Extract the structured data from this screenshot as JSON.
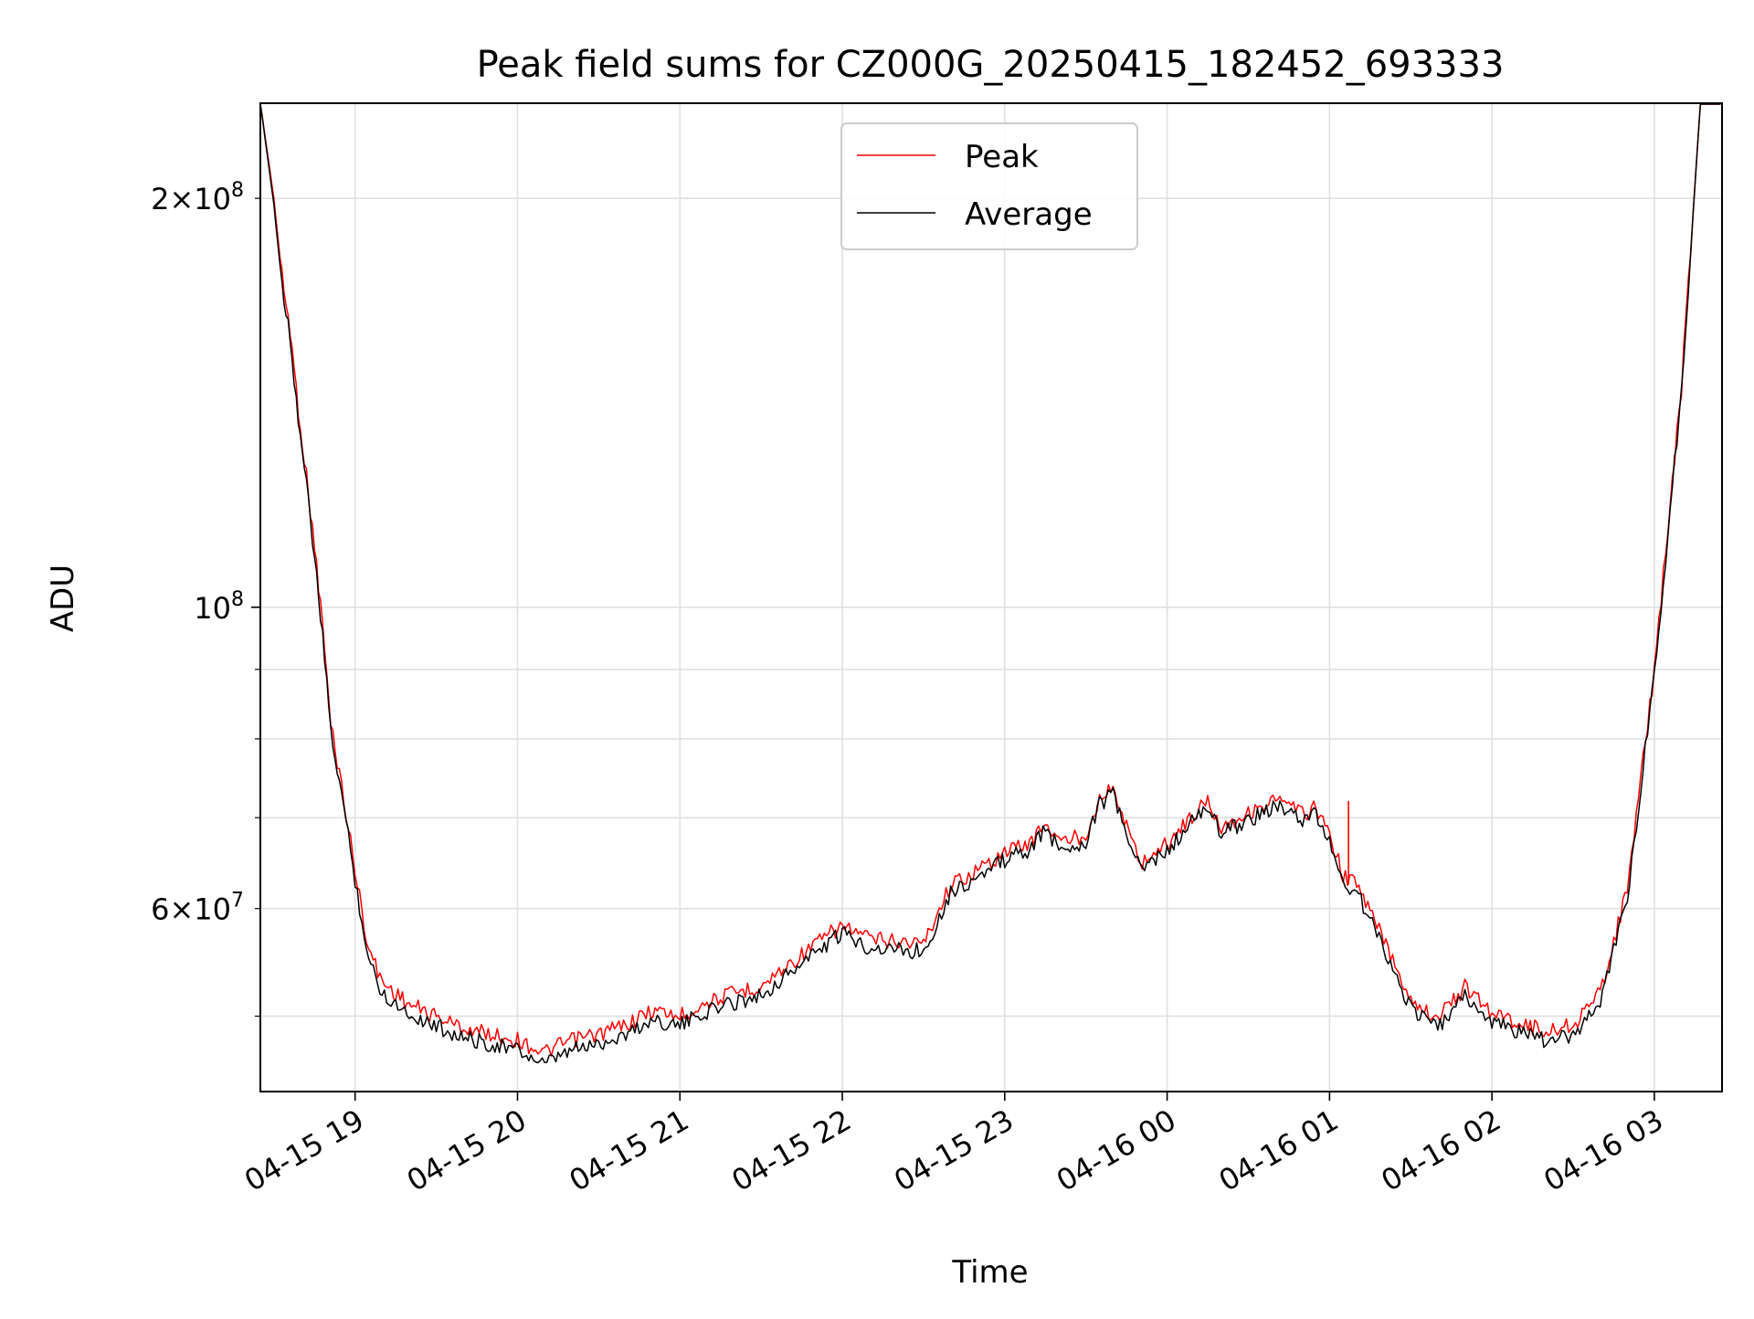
{
  "chart_data": {
    "type": "line",
    "title": "Peak field sums for CZ000G_20250415_182452_693333",
    "xlabel": "Time",
    "ylabel": "ADU",
    "yscale": "log",
    "ylim": [
      44000000,
      235000000
    ],
    "xlim": [
      "2025-04-15 18:25",
      "2025-04-16 03:25"
    ],
    "grid": true,
    "legend_position": "top-center",
    "colors": {
      "peak": "#ff0000",
      "average": "#000000",
      "grid": "#e0e0e0",
      "axis": "#000000"
    },
    "x_ticks": [
      {
        "at": "2025-04-15 19:00",
        "label": "04-15 19"
      },
      {
        "at": "2025-04-15 20:00",
        "label": "04-15 20"
      },
      {
        "at": "2025-04-15 21:00",
        "label": "04-15 21"
      },
      {
        "at": "2025-04-15 22:00",
        "label": "04-15 22"
      },
      {
        "at": "2025-04-15 23:00",
        "label": "04-15 23"
      },
      {
        "at": "2025-04-16 00:00",
        "label": "04-16 00"
      },
      {
        "at": "2025-04-16 01:00",
        "label": "04-16 01"
      },
      {
        "at": "2025-04-16 02:00",
        "label": "04-16 02"
      },
      {
        "at": "2025-04-16 03:00",
        "label": "04-16 03"
      }
    ],
    "y_major_ticks": [
      {
        "value": 100000000,
        "base": "10",
        "exp": "8"
      }
    ],
    "y_minor_ticks": [
      {
        "value": 50000000
      },
      {
        "value": 60000000,
        "mantissa": "6",
        "base": "10",
        "exp": "7"
      },
      {
        "value": 70000000
      },
      {
        "value": 80000000
      },
      {
        "value": 90000000
      },
      {
        "value": 200000000,
        "mantissa": "2",
        "base": "10",
        "exp": "8"
      }
    ],
    "series": [
      {
        "name": "Peak",
        "color": "#ff0000",
        "points": [
          [
            "2025-04-15 18:25",
            235000000
          ],
          [
            "2025-04-15 18:30",
            200000000
          ],
          [
            "2025-04-15 18:33",
            175000000
          ],
          [
            "2025-04-15 18:36",
            160000000
          ],
          [
            "2025-04-15 18:39",
            140000000
          ],
          [
            "2025-04-15 18:42",
            125000000
          ],
          [
            "2025-04-15 18:45",
            111000000
          ],
          [
            "2025-04-15 18:48",
            97000000
          ],
          [
            "2025-04-15 18:51",
            82000000
          ],
          [
            "2025-04-15 18:55",
            74000000
          ],
          [
            "2025-04-15 19:00",
            64000000
          ],
          [
            "2025-04-15 19:05",
            56000000
          ],
          [
            "2025-04-15 19:10",
            53000000
          ],
          [
            "2025-04-15 19:20",
            51000000
          ],
          [
            "2025-04-15 19:30",
            50000000
          ],
          [
            "2025-04-15 19:40",
            49000000
          ],
          [
            "2025-04-15 19:50",
            48500000
          ],
          [
            "2025-04-15 20:00",
            48000000
          ],
          [
            "2025-04-15 20:10",
            47000000
          ],
          [
            "2025-04-15 20:20",
            48000000
          ],
          [
            "2025-04-15 20:30",
            48500000
          ],
          [
            "2025-04-15 20:40",
            49300000
          ],
          [
            "2025-04-15 20:50",
            50500000
          ],
          [
            "2025-04-15 21:00",
            50000000
          ],
          [
            "2025-04-15 21:10",
            51200000
          ],
          [
            "2025-04-15 21:20",
            52000000
          ],
          [
            "2025-04-15 21:30",
            52600000
          ],
          [
            "2025-04-15 21:40",
            54500000
          ],
          [
            "2025-04-15 21:50",
            56500000
          ],
          [
            "2025-04-15 22:00",
            58300000
          ],
          [
            "2025-04-15 22:10",
            57000000
          ],
          [
            "2025-04-15 22:20",
            56800000
          ],
          [
            "2025-04-15 22:30",
            56600000
          ],
          [
            "2025-04-15 22:40",
            62500000
          ],
          [
            "2025-04-15 22:50",
            64000000
          ],
          [
            "2025-04-15 23:00",
            66000000
          ],
          [
            "2025-04-15 23:10",
            67200000
          ],
          [
            "2025-04-15 23:15",
            69500000
          ],
          [
            "2025-04-15 23:20",
            67200000
          ],
          [
            "2025-04-15 23:30",
            68000000
          ],
          [
            "2025-04-15 23:35",
            72500000
          ],
          [
            "2025-04-15 23:40",
            73500000
          ],
          [
            "2025-04-15 23:45",
            69000000
          ],
          [
            "2025-04-15 23:50",
            64800000
          ],
          [
            "2025-04-16 00:00",
            67000000
          ],
          [
            "2025-04-16 00:10",
            70500000
          ],
          [
            "2025-04-16 00:15",
            72000000
          ],
          [
            "2025-04-16 00:20",
            69000000
          ],
          [
            "2025-04-16 00:30",
            70500000
          ],
          [
            "2025-04-16 00:40",
            72200000
          ],
          [
            "2025-04-16 00:50",
            70500000
          ],
          [
            "2025-04-16 00:55",
            71200000
          ],
          [
            "2025-04-16 01:00",
            68000000
          ],
          [
            "2025-04-16 01:05",
            63500000
          ],
          [
            "2025-04-16 01:10",
            62500000
          ],
          [
            "2025-04-16 01:20",
            57000000
          ],
          [
            "2025-04-16 01:30",
            51500000
          ],
          [
            "2025-04-16 01:40",
            49800000
          ],
          [
            "2025-04-16 01:50",
            52500000
          ],
          [
            "2025-04-16 02:00",
            50300000
          ],
          [
            "2025-04-16 02:10",
            49500000
          ],
          [
            "2025-04-16 02:20",
            48700000
          ],
          [
            "2025-04-16 02:30",
            49300000
          ],
          [
            "2025-04-16 02:40",
            52000000
          ],
          [
            "2025-04-16 02:50",
            62000000
          ],
          [
            "2025-04-16 03:00",
            90000000
          ],
          [
            "2025-04-16 03:10",
            145000000
          ],
          [
            "2025-04-16 03:17",
            235000000
          ],
          [
            "2025-04-16 03:25",
            235000000
          ]
        ],
        "spikes": [
          [
            "2025-04-16 01:07",
            72000000
          ]
        ]
      },
      {
        "name": "Average",
        "color": "#000000",
        "points": [
          [
            "2025-04-15 18:25",
            235000000
          ],
          [
            "2025-04-15 18:30",
            198000000
          ],
          [
            "2025-04-15 18:33",
            173000000
          ],
          [
            "2025-04-15 18:36",
            158000000
          ],
          [
            "2025-04-15 18:39",
            138000000
          ],
          [
            "2025-04-15 18:42",
            123000000
          ],
          [
            "2025-04-15 18:45",
            109000000
          ],
          [
            "2025-04-15 18:48",
            95000000
          ],
          [
            "2025-04-15 18:51",
            81000000
          ],
          [
            "2025-04-15 18:55",
            73000000
          ],
          [
            "2025-04-15 19:00",
            63000000
          ],
          [
            "2025-04-15 19:05",
            55000000
          ],
          [
            "2025-04-15 19:10",
            52000000
          ],
          [
            "2025-04-15 19:20",
            50200000
          ],
          [
            "2025-04-15 19:30",
            49200000
          ],
          [
            "2025-04-15 19:40",
            48200000
          ],
          [
            "2025-04-15 19:50",
            47700000
          ],
          [
            "2025-04-15 20:00",
            47200000
          ],
          [
            "2025-04-15 20:10",
            46000000
          ],
          [
            "2025-04-15 20:20",
            47200000
          ],
          [
            "2025-04-15 20:30",
            47700000
          ],
          [
            "2025-04-15 20:40",
            48500000
          ],
          [
            "2025-04-15 20:50",
            49700000
          ],
          [
            "2025-04-15 21:00",
            49200000
          ],
          [
            "2025-04-15 21:10",
            50400000
          ],
          [
            "2025-04-15 21:20",
            51200000
          ],
          [
            "2025-04-15 21:30",
            51800000
          ],
          [
            "2025-04-15 21:40",
            53700000
          ],
          [
            "2025-04-15 21:50",
            55700000
          ],
          [
            "2025-04-15 22:00",
            57500000
          ],
          [
            "2025-04-15 22:10",
            56200000
          ],
          [
            "2025-04-15 22:20",
            56000000
          ],
          [
            "2025-04-15 22:30",
            55800000
          ],
          [
            "2025-04-15 22:40",
            61700000
          ],
          [
            "2025-04-15 22:50",
            63200000
          ],
          [
            "2025-04-15 23:00",
            65200000
          ],
          [
            "2025-04-15 23:10",
            66400000
          ],
          [
            "2025-04-15 23:15",
            68700000
          ],
          [
            "2025-04-15 23:20",
            66400000
          ],
          [
            "2025-04-15 23:30",
            67200000
          ],
          [
            "2025-04-15 23:35",
            71700000
          ],
          [
            "2025-04-15 23:40",
            72700000
          ],
          [
            "2025-04-15 23:45",
            68200000
          ],
          [
            "2025-04-15 23:50",
            64000000
          ],
          [
            "2025-04-16 00:00",
            66200000
          ],
          [
            "2025-04-16 00:10",
            69700000
          ],
          [
            "2025-04-16 00:15",
            71200000
          ],
          [
            "2025-04-16 00:20",
            68200000
          ],
          [
            "2025-04-16 00:30",
            69700000
          ],
          [
            "2025-04-16 00:40",
            71400000
          ],
          [
            "2025-04-16 00:50",
            69700000
          ],
          [
            "2025-04-16 00:55",
            70400000
          ],
          [
            "2025-04-16 01:00",
            67200000
          ],
          [
            "2025-04-16 01:05",
            62700000
          ],
          [
            "2025-04-16 01:10",
            61700000
          ],
          [
            "2025-04-16 01:20",
            56200000
          ],
          [
            "2025-04-16 01:30",
            50700000
          ],
          [
            "2025-04-16 01:40",
            49000000
          ],
          [
            "2025-04-16 01:50",
            51700000
          ],
          [
            "2025-04-16 02:00",
            49500000
          ],
          [
            "2025-04-16 02:10",
            48700000
          ],
          [
            "2025-04-16 02:20",
            47900000
          ],
          [
            "2025-04-16 02:30",
            48500000
          ],
          [
            "2025-04-16 02:40",
            51200000
          ],
          [
            "2025-04-16 02:50",
            61200000
          ],
          [
            "2025-04-16 03:00",
            89000000
          ],
          [
            "2025-04-16 03:10",
            144000000
          ],
          [
            "2025-04-16 03:17",
            235000000
          ],
          [
            "2025-04-16 03:25",
            235000000
          ]
        ]
      }
    ]
  }
}
